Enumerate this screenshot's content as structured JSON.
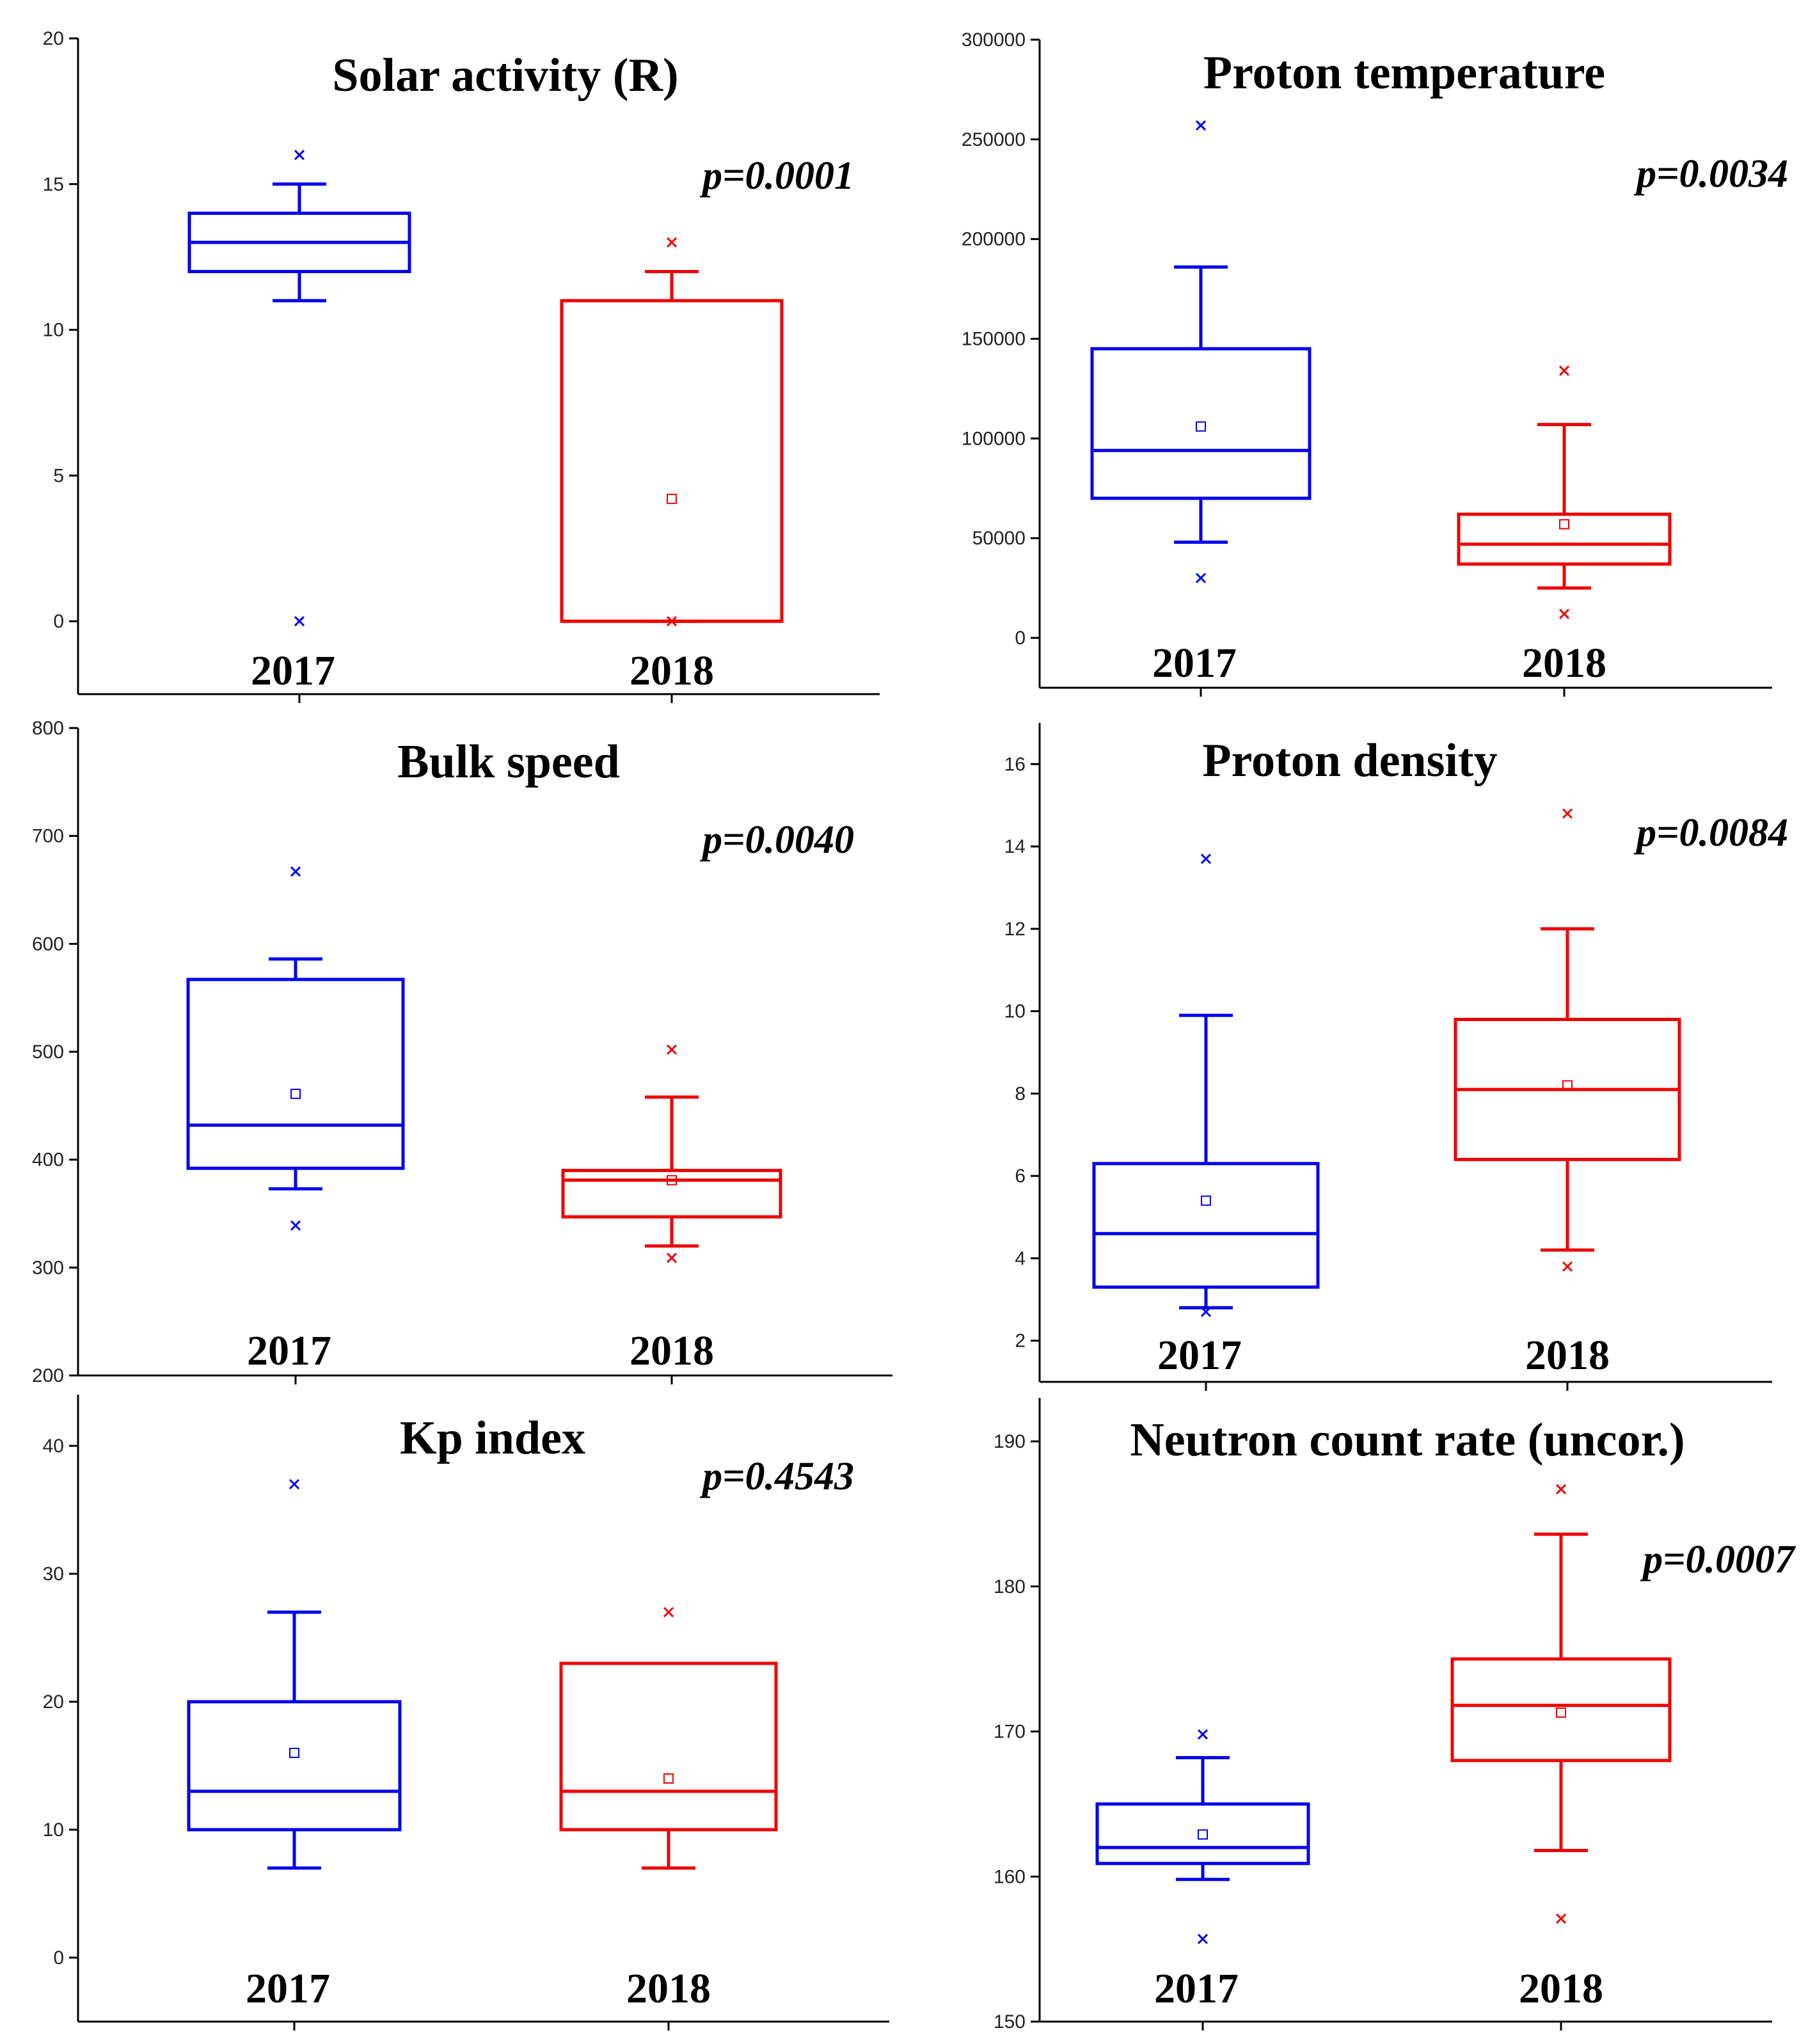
{
  "colors": {
    "y2017": "#0000ee",
    "y2018": "#ee0000",
    "axis": "#000000"
  },
  "chart_data": [
    {
      "type": "box",
      "title": "Solar activity (R)",
      "annotation": "p=0.0001",
      "categories": [
        "2017",
        "2018"
      ],
      "ylim": [
        -2.5,
        20
      ],
      "yticks": [
        0,
        5,
        10,
        15,
        20
      ],
      "ytick_labels": [
        "0",
        "5",
        "10",
        "15",
        "20"
      ],
      "boxes": [
        {
          "name": "2017",
          "whisker_low": 11,
          "q1": 12,
          "median": 13,
          "q3": 14,
          "whisker_high": 15,
          "outliers": [
            0,
            16
          ]
        },
        {
          "name": "2018",
          "whisker_low": 0,
          "q1": 0,
          "median": 0,
          "q3": 11,
          "whisker_high": 12,
          "mean": 4.2,
          "outliers": [
            0,
            13
          ]
        }
      ]
    },
    {
      "type": "box",
      "title": "Proton temperature",
      "annotation": "p=0.0034",
      "categories": [
        "2017",
        "2018"
      ],
      "ylim": [
        -25000,
        300000
      ],
      "yticks": [
        0,
        50000,
        100000,
        150000,
        200000,
        250000,
        300000
      ],
      "ytick_labels": [
        "0",
        "50000",
        "100000",
        "150000",
        "200000",
        "250000",
        "300000"
      ],
      "boxes": [
        {
          "name": "2017",
          "whisker_low": 48000,
          "q1": 70000,
          "median": 94000,
          "q3": 145000,
          "whisker_high": 186000,
          "mean": 106000,
          "outliers": [
            30000,
            257000
          ]
        },
        {
          "name": "2018",
          "whisker_low": 25000,
          "q1": 37000,
          "median": 47000,
          "q3": 62000,
          "whisker_high": 107000,
          "mean": 57000,
          "outliers": [
            12000,
            134000
          ]
        }
      ]
    },
    {
      "type": "box",
      "title": "Bulk speed",
      "annotation": "p=0.0040",
      "categories": [
        "2017",
        "2018"
      ],
      "ylim": [
        200,
        800
      ],
      "yticks": [
        200,
        300,
        400,
        500,
        600,
        700,
        800
      ],
      "ytick_labels": [
        "200",
        "300",
        "400",
        "500",
        "600",
        "700",
        "800"
      ],
      "boxes": [
        {
          "name": "2017",
          "whisker_low": 373,
          "q1": 392,
          "median": 432,
          "q3": 567,
          "whisker_high": 586,
          "mean": 461,
          "outliers": [
            339,
            667
          ]
        },
        {
          "name": "2018",
          "whisker_low": 320,
          "q1": 347,
          "median": 381,
          "q3": 390,
          "whisker_high": 458,
          "mean": 381,
          "outliers": [
            309,
            502
          ]
        }
      ]
    },
    {
      "type": "box",
      "title": "Proton density",
      "annotation": "p=0.0084",
      "categories": [
        "2017",
        "2018"
      ],
      "ylim": [
        1,
        17
      ],
      "yticks": [
        2,
        4,
        6,
        8,
        10,
        12,
        14,
        16
      ],
      "ytick_labels": [
        "2",
        "4",
        "6",
        "8",
        "10",
        "12",
        "14",
        "16"
      ],
      "boxes": [
        {
          "name": "2017",
          "whisker_low": 2.8,
          "q1": 3.3,
          "median": 4.6,
          "q3": 6.3,
          "whisker_high": 9.9,
          "mean": 5.4,
          "outliers": [
            2.7,
            13.7
          ]
        },
        {
          "name": "2018",
          "whisker_low": 4.2,
          "q1": 6.4,
          "median": 8.1,
          "q3": 9.8,
          "whisker_high": 12.0,
          "mean": 8.2,
          "outliers": [
            3.8,
            14.8
          ]
        }
      ]
    },
    {
      "type": "box",
      "title": "Kp index",
      "annotation": "p=0.4543",
      "categories": [
        "2017",
        "2018"
      ],
      "ylim": [
        -5,
        44
      ],
      "yticks": [
        0,
        10,
        20,
        30,
        40
      ],
      "ytick_labels": [
        "0",
        "10",
        "20",
        "30",
        "40"
      ],
      "boxes": [
        {
          "name": "2017",
          "whisker_low": 7,
          "q1": 10,
          "median": 13,
          "q3": 20,
          "whisker_high": 27,
          "mean": 16,
          "outliers": [
            37
          ]
        },
        {
          "name": "2018",
          "whisker_low": 7,
          "q1": 10,
          "median": 13,
          "q3": 23,
          "whisker_high": 23,
          "mean": 14,
          "outliers": [
            27
          ]
        }
      ]
    },
    {
      "type": "box",
      "title": "Neutron count rate (uncor.)",
      "annotation": "p=0.0007",
      "categories": [
        "2017",
        "2018"
      ],
      "ylim": [
        150,
        193
      ],
      "yticks": [
        150,
        160,
        170,
        180,
        190
      ],
      "ytick_labels": [
        "150",
        "160",
        "170",
        "180",
        "190"
      ],
      "boxes": [
        {
          "name": "2017",
          "whisker_low": 159.8,
          "q1": 160.9,
          "median": 162,
          "q3": 165,
          "whisker_high": 168.2,
          "mean": 162.9,
          "outliers": [
            155.7,
            169.8
          ]
        },
        {
          "name": "2018",
          "whisker_low": 161.8,
          "q1": 168,
          "median": 171.8,
          "q3": 175,
          "whisker_high": 183.6,
          "mean": 171.3,
          "outliers": [
            157.1,
            186.7
          ]
        }
      ]
    }
  ]
}
